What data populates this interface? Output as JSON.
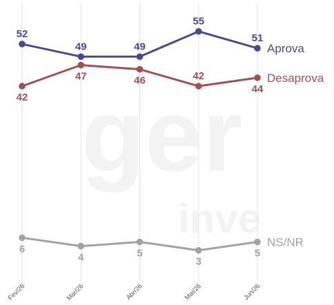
{
  "chart_data": {
    "type": "line",
    "title": "",
    "xlabel": "",
    "ylabel": "",
    "categories": [
      "Fev/26",
      "Mar/26",
      "Abr/26",
      "Mai/26",
      "Jun/26"
    ],
    "ylim": [
      0,
      60
    ],
    "grid": "vertical",
    "legend": "end-of-line labels (right)",
    "series": [
      {
        "name": "Aprova",
        "values": [
          52,
          49,
          49,
          55,
          51
        ],
        "color": "#4a4895"
      },
      {
        "name": "Desaprova",
        "values": [
          42,
          47,
          46,
          42,
          44
        ],
        "color": "#a0514f"
      },
      {
        "name": "NS/NR",
        "values": [
          6,
          4,
          5,
          3,
          5
        ],
        "color": "#a2a2a2"
      }
    ]
  }
}
